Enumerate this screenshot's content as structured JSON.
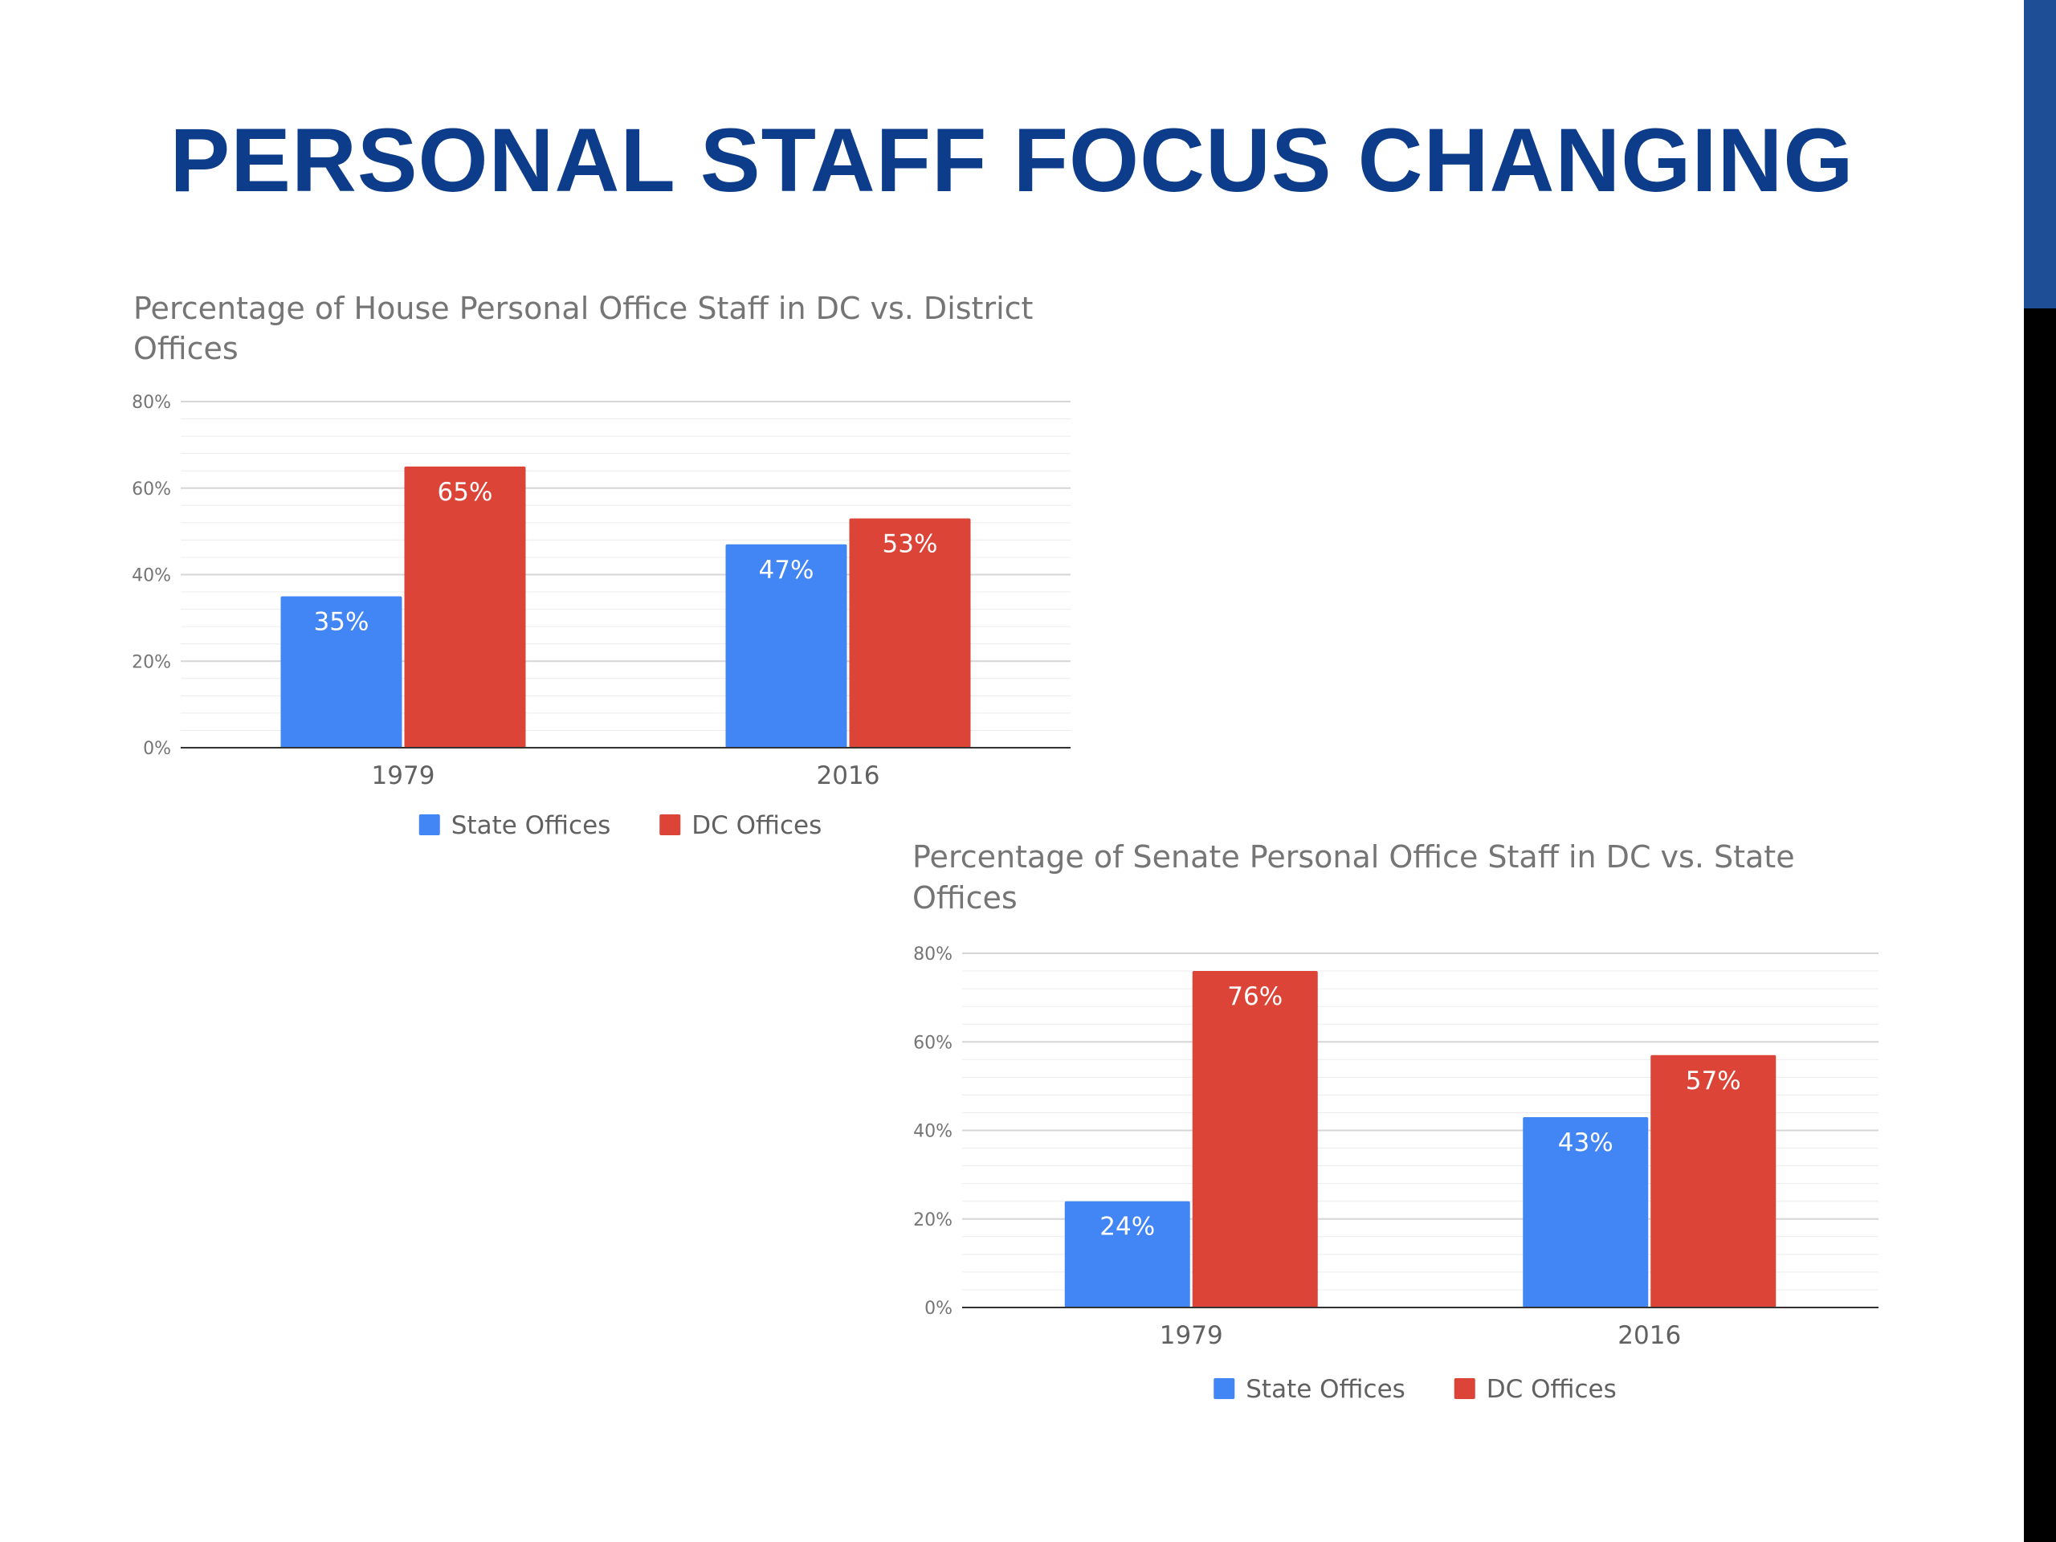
{
  "page": {
    "title": "PERSONAL STAFF FOCUS CHANGING",
    "title_color": "#0d3d8a",
    "edge_blue_color": "#1d4e96",
    "edge_black_color": "#000000"
  },
  "chart_data": [
    {
      "type": "bar",
      "title_lines": [
        "Percentage of House Personal Office Staff in DC vs. District",
        "Offices"
      ],
      "categories": [
        "1979",
        "2016"
      ],
      "series": [
        {
          "name": "State Offices",
          "values": [
            35,
            47
          ],
          "labels": [
            "35%",
            "47%"
          ],
          "color": "#4285f4"
        },
        {
          "name": "DC Offices",
          "values": [
            65,
            53
          ],
          "labels": [
            "65%",
            "53%"
          ],
          "color": "#db4437"
        }
      ],
      "ylim": [
        0,
        80
      ],
      "yticks": [
        0,
        20,
        40,
        60,
        80
      ],
      "ytick_labels": [
        "0%",
        "20%",
        "40%",
        "60%",
        "80%"
      ],
      "xlabel": "",
      "ylabel": "",
      "grid": true,
      "legend": "bottom"
    },
    {
      "type": "bar",
      "title_lines": [
        "Percentage of Senate Personal Office Staff in DC vs. State",
        "Offices"
      ],
      "categories": [
        "1979",
        "2016"
      ],
      "series": [
        {
          "name": "State Offices",
          "values": [
            24,
            43
          ],
          "labels": [
            "24%",
            "43%"
          ],
          "color": "#4285f4"
        },
        {
          "name": "DC Offices",
          "values": [
            76,
            57
          ],
          "labels": [
            "76%",
            "57%"
          ],
          "color": "#db4437"
        }
      ],
      "ylim": [
        0,
        80
      ],
      "yticks": [
        0,
        20,
        40,
        60,
        80
      ],
      "ytick_labels": [
        "0%",
        "20%",
        "40%",
        "60%",
        "80%"
      ],
      "xlabel": "",
      "ylabel": "",
      "grid": true,
      "legend": "bottom"
    }
  ]
}
